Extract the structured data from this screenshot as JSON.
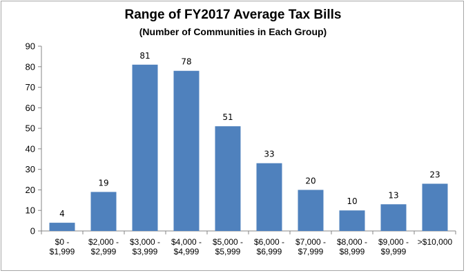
{
  "chart_data": {
    "type": "bar",
    "title": "Range of FY2017 Average Tax Bills",
    "subtitle": "(Number of Communities in Each Group)",
    "categories": [
      [
        "$0 -",
        "$1,999"
      ],
      [
        "$2,000 -",
        "$2,999"
      ],
      [
        "$3,000 -",
        "$3,999"
      ],
      [
        "$4,000 -",
        "$4,999"
      ],
      [
        "$5,000 -",
        "$5,999"
      ],
      [
        "$6,000 -",
        "$6,999"
      ],
      [
        "$7,000 -",
        "$7,999"
      ],
      [
        "$8,000 -",
        "$8,999"
      ],
      [
        "$9,000 -",
        "$9,999"
      ],
      [
        ">$10,000"
      ]
    ],
    "values": [
      4,
      19,
      81,
      78,
      51,
      33,
      20,
      10,
      13,
      23
    ],
    "ylim": [
      0,
      90
    ],
    "yticks": [
      0,
      10,
      20,
      30,
      40,
      50,
      60,
      70,
      80,
      90
    ],
    "grid": false,
    "legend": "none",
    "bar_color": "#4f81bd",
    "xlabel": "",
    "ylabel": ""
  }
}
